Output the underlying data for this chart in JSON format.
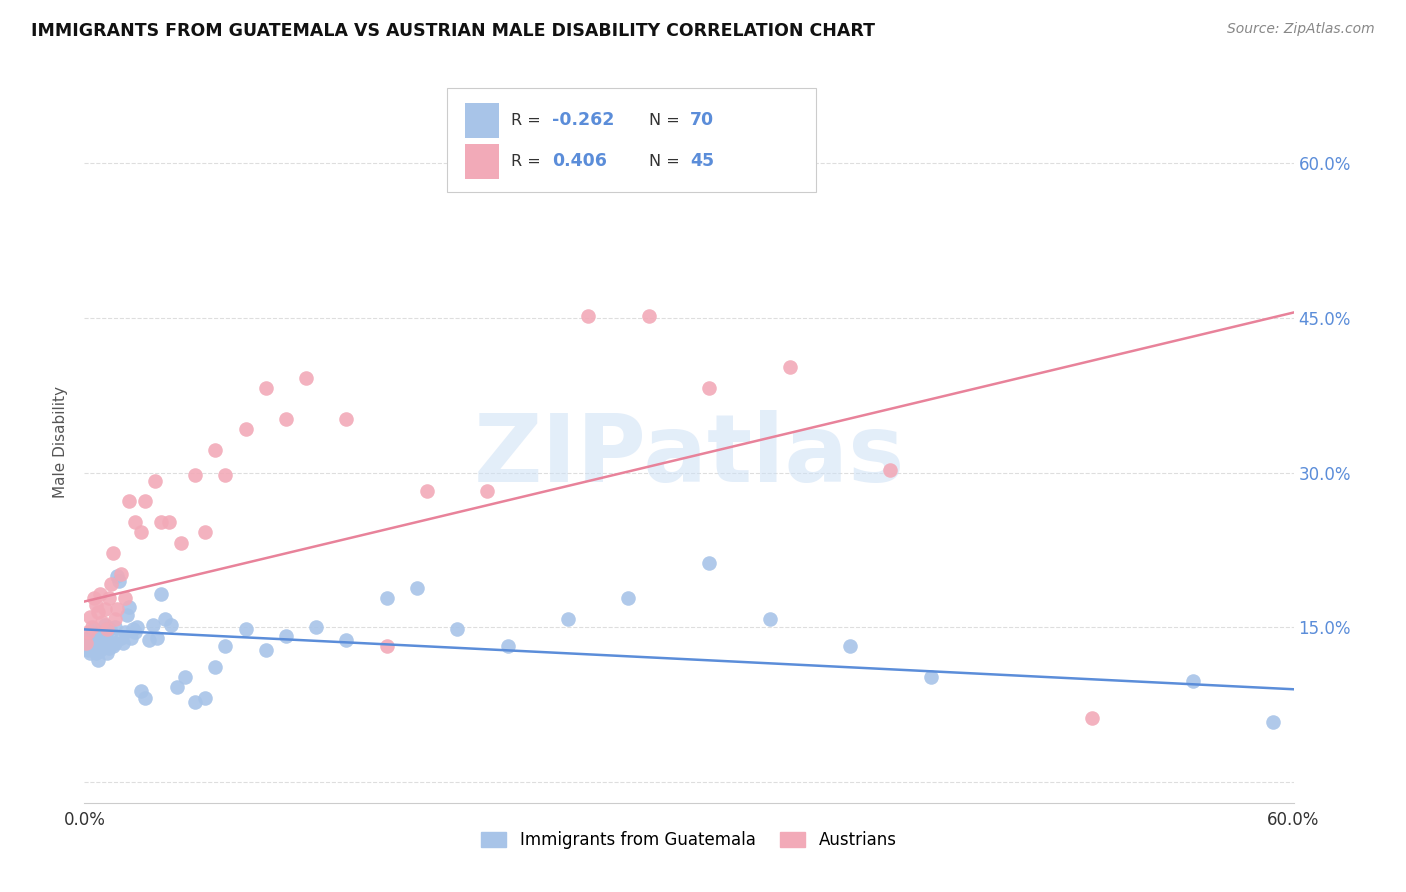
{
  "title": "IMMIGRANTS FROM GUATEMALA VS AUSTRIAN MALE DISABILITY CORRELATION CHART",
  "source": "Source: ZipAtlas.com",
  "ylabel": "Male Disability",
  "xlim": [
    0.0,
    0.6
  ],
  "ylim": [
    -0.02,
    0.68
  ],
  "xtick_positions": [
    0.0,
    0.1,
    0.2,
    0.3,
    0.4,
    0.5,
    0.6
  ],
  "xticklabels": [
    "0.0%",
    "",
    "",
    "",
    "",
    "",
    "60.0%"
  ],
  "ytick_positions": [
    0.0,
    0.15,
    0.3,
    0.45,
    0.6
  ],
  "ytick_labels_right": [
    "",
    "15.0%",
    "30.0%",
    "45.0%",
    "60.0%"
  ],
  "legend1_R": "-0.262",
  "legend1_N": "70",
  "legend2_R": "0.406",
  "legend2_N": "45",
  "color_blue": "#a8c4e8",
  "color_pink": "#f2aab8",
  "color_blue_text": "#5b8dd9",
  "color_pink_text": "#e8829a",
  "watermark": "ZIPatlas",
  "blue_scatter_x": [
    0.001,
    0.001,
    0.002,
    0.002,
    0.003,
    0.003,
    0.004,
    0.004,
    0.005,
    0.005,
    0.006,
    0.006,
    0.007,
    0.007,
    0.008,
    0.008,
    0.009,
    0.009,
    0.01,
    0.01,
    0.011,
    0.011,
    0.012,
    0.012,
    0.013,
    0.014,
    0.015,
    0.015,
    0.016,
    0.017,
    0.018,
    0.019,
    0.02,
    0.021,
    0.022,
    0.023,
    0.024,
    0.025,
    0.026,
    0.028,
    0.03,
    0.032,
    0.034,
    0.036,
    0.038,
    0.04,
    0.043,
    0.046,
    0.05,
    0.055,
    0.06,
    0.065,
    0.07,
    0.08,
    0.09,
    0.1,
    0.115,
    0.13,
    0.15,
    0.165,
    0.185,
    0.21,
    0.24,
    0.27,
    0.31,
    0.34,
    0.38,
    0.42,
    0.55,
    0.59
  ],
  "blue_scatter_y": [
    0.13,
    0.135,
    0.128,
    0.14,
    0.125,
    0.138,
    0.13,
    0.145,
    0.132,
    0.148,
    0.138,
    0.125,
    0.142,
    0.118,
    0.135,
    0.128,
    0.14,
    0.13,
    0.145,
    0.152,
    0.125,
    0.138,
    0.148,
    0.13,
    0.145,
    0.132,
    0.15,
    0.135,
    0.2,
    0.195,
    0.14,
    0.135,
    0.145,
    0.162,
    0.17,
    0.14,
    0.148,
    0.145,
    0.15,
    0.088,
    0.082,
    0.138,
    0.152,
    0.14,
    0.182,
    0.158,
    0.152,
    0.092,
    0.102,
    0.078,
    0.082,
    0.112,
    0.132,
    0.148,
    0.128,
    0.142,
    0.15,
    0.138,
    0.178,
    0.188,
    0.148,
    0.132,
    0.158,
    0.178,
    0.212,
    0.158,
    0.132,
    0.102,
    0.098,
    0.058
  ],
  "pink_scatter_x": [
    0.001,
    0.002,
    0.003,
    0.004,
    0.005,
    0.006,
    0.007,
    0.008,
    0.009,
    0.01,
    0.011,
    0.012,
    0.013,
    0.014,
    0.015,
    0.016,
    0.018,
    0.02,
    0.022,
    0.025,
    0.028,
    0.03,
    0.035,
    0.038,
    0.042,
    0.048,
    0.055,
    0.06,
    0.065,
    0.07,
    0.08,
    0.09,
    0.1,
    0.11,
    0.13,
    0.15,
    0.17,
    0.2,
    0.22,
    0.25,
    0.28,
    0.31,
    0.35,
    0.4,
    0.5
  ],
  "pink_scatter_y": [
    0.135,
    0.145,
    0.16,
    0.15,
    0.178,
    0.172,
    0.165,
    0.182,
    0.155,
    0.168,
    0.148,
    0.178,
    0.192,
    0.222,
    0.158,
    0.168,
    0.202,
    0.178,
    0.272,
    0.252,
    0.242,
    0.272,
    0.292,
    0.252,
    0.252,
    0.232,
    0.298,
    0.242,
    0.322,
    0.298,
    0.342,
    0.382,
    0.352,
    0.392,
    0.352,
    0.132,
    0.282,
    0.282,
    0.622,
    0.452,
    0.452,
    0.382,
    0.402,
    0.302,
    0.062
  ],
  "blue_line_x": [
    0.0,
    0.6
  ],
  "blue_line_y": [
    0.148,
    0.09
  ],
  "pink_line_x": [
    0.0,
    0.6
  ],
  "pink_line_y": [
    0.175,
    0.455
  ],
  "grid_color": "#dedede",
  "bottom_legend_labels": [
    "Immigrants from Guatemala",
    "Austrians"
  ]
}
